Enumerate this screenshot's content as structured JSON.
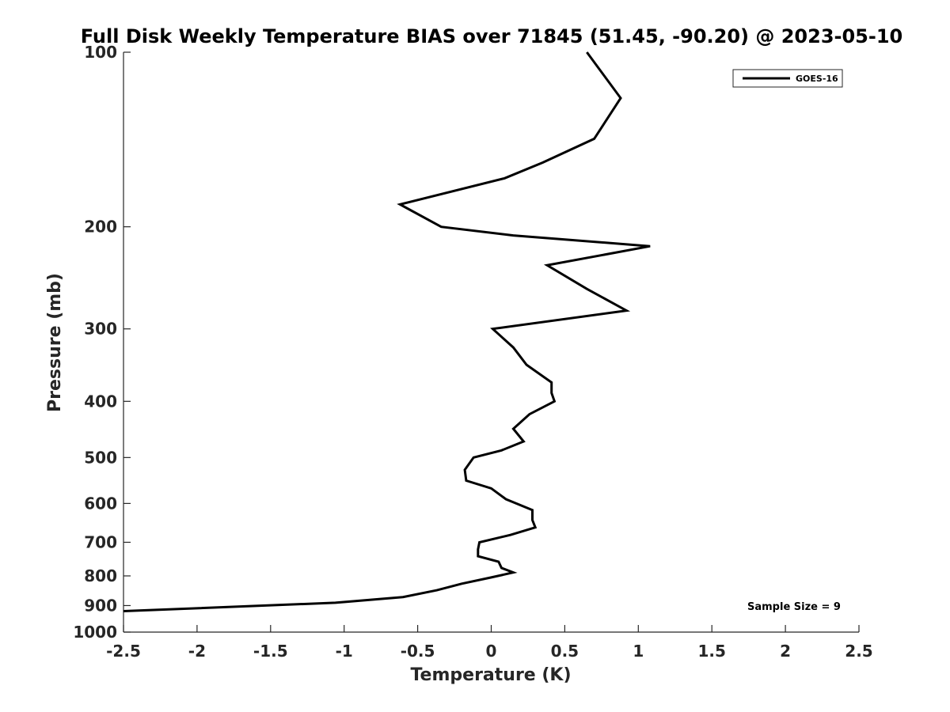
{
  "chart_data": {
    "type": "line",
    "title": "Full Disk Weekly Temperature BIAS over 71845 (51.45, -90.20) @ 2023-05-10",
    "xlabel": "Temperature (K)",
    "ylabel": "Pressure (mb)",
    "xlim": [
      -2.5,
      2.5
    ],
    "ylim": [
      100,
      1000
    ],
    "y_scale": "log",
    "y_reversed": true,
    "x_ticks": [
      "-2.5",
      "-2",
      "-1.5",
      "-1",
      "-0.5",
      "0",
      "0.5",
      "1",
      "1.5",
      "2",
      "2.5"
    ],
    "y_ticks": [
      "100",
      "200",
      "300",
      "400",
      "500",
      "600",
      "700",
      "800",
      "900",
      "1000"
    ],
    "grid": false,
    "legend_position": "top-right",
    "series": [
      {
        "name": "GOES-16",
        "color": "#000000",
        "points": [
          {
            "x": 0.65,
            "y": 100
          },
          {
            "x": 0.88,
            "y": 120
          },
          {
            "x": 0.7,
            "y": 141
          },
          {
            "x": 0.35,
            "y": 155
          },
          {
            "x": 0.09,
            "y": 165
          },
          {
            "x": -0.62,
            "y": 183
          },
          {
            "x": -0.34,
            "y": 200
          },
          {
            "x": 0.15,
            "y": 207
          },
          {
            "x": 1.08,
            "y": 216
          },
          {
            "x": 0.38,
            "y": 233
          },
          {
            "x": 0.65,
            "y": 256
          },
          {
            "x": 0.92,
            "y": 279
          },
          {
            "x": 0.01,
            "y": 300
          },
          {
            "x": 0.15,
            "y": 323
          },
          {
            "x": 0.24,
            "y": 346
          },
          {
            "x": 0.41,
            "y": 371
          },
          {
            "x": 0.41,
            "y": 387
          },
          {
            "x": 0.43,
            "y": 400
          },
          {
            "x": 0.26,
            "y": 421
          },
          {
            "x": 0.15,
            "y": 446
          },
          {
            "x": 0.22,
            "y": 469
          },
          {
            "x": 0.07,
            "y": 486
          },
          {
            "x": -0.12,
            "y": 500
          },
          {
            "x": -0.18,
            "y": 525
          },
          {
            "x": -0.17,
            "y": 548
          },
          {
            "x": 0.0,
            "y": 565
          },
          {
            "x": 0.1,
            "y": 590
          },
          {
            "x": 0.28,
            "y": 616
          },
          {
            "x": 0.28,
            "y": 641
          },
          {
            "x": 0.3,
            "y": 660
          },
          {
            "x": 0.13,
            "y": 680
          },
          {
            "x": -0.08,
            "y": 700
          },
          {
            "x": -0.09,
            "y": 720
          },
          {
            "x": -0.09,
            "y": 740
          },
          {
            "x": 0.05,
            "y": 756
          },
          {
            "x": 0.07,
            "y": 775
          },
          {
            "x": 0.15,
            "y": 789
          },
          {
            "x": 0.0,
            "y": 805
          },
          {
            "x": -0.2,
            "y": 825
          },
          {
            "x": -0.37,
            "y": 847
          },
          {
            "x": -0.6,
            "y": 870
          },
          {
            "x": -1.06,
            "y": 890
          },
          {
            "x": -2.5,
            "y": 920
          }
        ]
      }
    ],
    "annotation": "Sample Size = 9"
  }
}
